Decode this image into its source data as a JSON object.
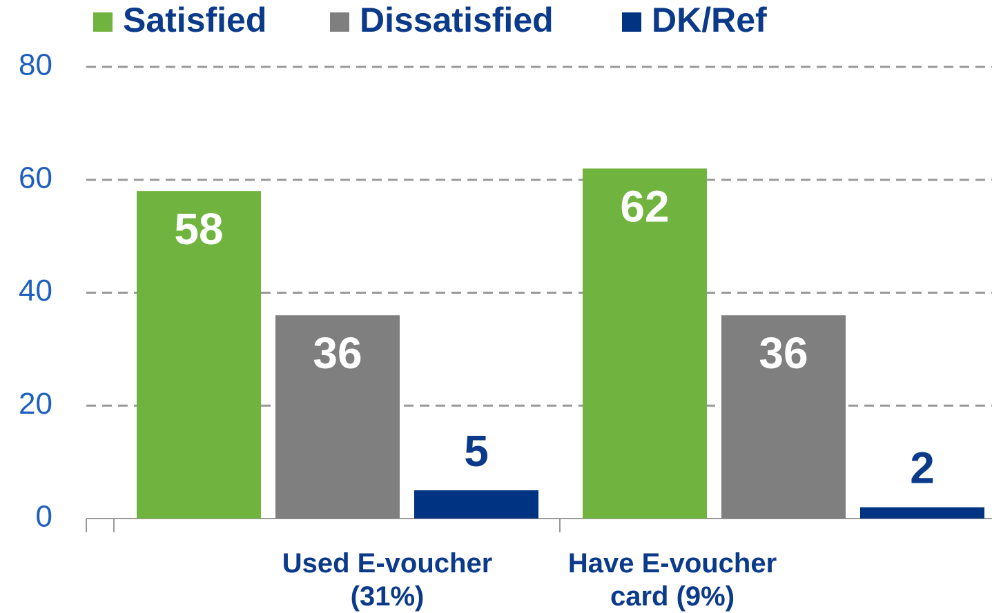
{
  "chart_data": {
    "type": "bar",
    "categories": [
      "Used E-voucher (31%)",
      "Have E-voucher card (9%)"
    ],
    "series": [
      {
        "name": "Satisfied",
        "color": "#70b33f",
        "values": [
          58,
          62
        ]
      },
      {
        "name": "Dissatisfied",
        "color": "#7f7f7f",
        "values": [
          36,
          36
        ]
      },
      {
        "name": "DK/Ref",
        "color": "#003382",
        "values": [
          5,
          2
        ]
      }
    ],
    "ylim": [
      0,
      80
    ],
    "yticks": [
      0,
      20,
      40,
      60,
      80
    ],
    "grid": true,
    "legend": "top"
  }
}
